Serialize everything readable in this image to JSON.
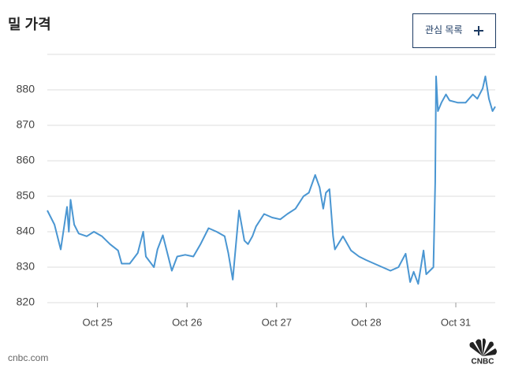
{
  "chart_data": {
    "type": "line",
    "title": "밀 가격",
    "x": [
      0.44,
      0.52,
      0.59,
      0.66,
      0.68,
      0.7,
      0.74,
      0.79,
      0.88,
      0.96,
      1.05,
      1.14,
      1.23,
      1.27,
      1.36,
      1.45,
      1.51,
      1.54,
      1.63,
      1.67,
      1.73,
      1.78,
      1.83,
      1.89,
      1.98,
      2.07,
      2.15,
      2.24,
      2.33,
      2.42,
      2.46,
      2.51,
      2.53,
      2.58,
      2.64,
      2.68,
      2.73,
      2.77,
      2.86,
      2.95,
      3.04,
      3.12,
      3.21,
      3.3,
      3.36,
      3.43,
      3.48,
      3.52,
      3.55,
      3.59,
      3.63,
      3.65,
      3.74,
      3.83,
      3.92,
      4.0,
      4.09,
      4.18,
      4.27,
      4.36,
      4.44,
      4.49,
      4.53,
      4.58,
      4.64,
      4.67,
      4.75,
      4.77,
      4.78,
      4.8,
      4.84,
      4.89,
      4.93,
      5.02,
      5.11,
      5.19,
      5.24,
      5.3,
      5.33,
      5.37,
      5.41,
      5.44
    ],
    "series": [
      {
        "color": "#4a96d2",
        "values": [
          846,
          842,
          835,
          847,
          840,
          849,
          842,
          839.5,
          838.7,
          840,
          838.7,
          836.5,
          834.7,
          831,
          831,
          834,
          840,
          833,
          830,
          835,
          839,
          834,
          829,
          833,
          833.5,
          833,
          836.5,
          841,
          840,
          838.7,
          834,
          826.5,
          832,
          846,
          837.5,
          836.5,
          838.7,
          841.5,
          845,
          844,
          843.5,
          845,
          846.5,
          850,
          851,
          856,
          852.5,
          846.5,
          851,
          852,
          838.7,
          835,
          838.7,
          834.7,
          833,
          832,
          831,
          830,
          829,
          830,
          833.8,
          825.8,
          828.7,
          825.3,
          834.7,
          828,
          830,
          854,
          883.8,
          874,
          876.4,
          878.7,
          877,
          876.4,
          876.4,
          878.7,
          877.5,
          880.4,
          883.8,
          877.5,
          874,
          875.3
        ]
      }
    ],
    "xlim": [
      0.44,
      5.44
    ],
    "xticks": [
      {
        "value": 1,
        "label": "Oct 25"
      },
      {
        "value": 2,
        "label": "Oct 26"
      },
      {
        "value": 3,
        "label": "Oct 27"
      },
      {
        "value": 4,
        "label": "Oct 28"
      },
      {
        "value": 5,
        "label": "Oct 31"
      }
    ],
    "ylim": [
      820,
      890
    ],
    "yticks": [
      820,
      830,
      840,
      850,
      860,
      870,
      880
    ],
    "grid": true
  },
  "watchlist_button": {
    "label": "관심 목록"
  },
  "footer": {
    "source": "cnbc.com",
    "logo": "CNBC"
  }
}
